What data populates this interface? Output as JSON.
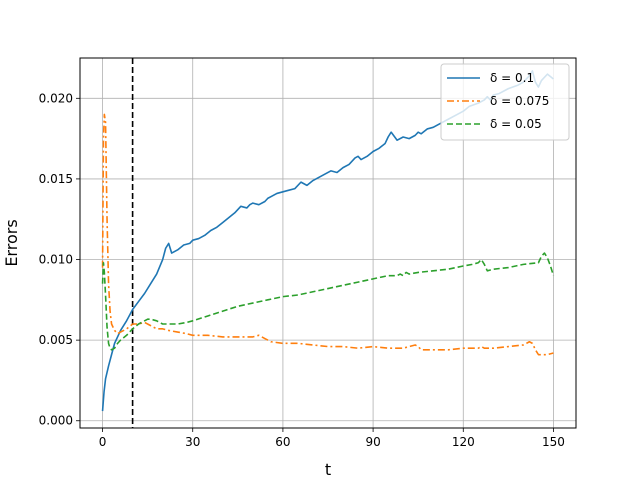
{
  "chart_data": {
    "type": "line",
    "title": "",
    "xlabel": "t",
    "ylabel": "Errors",
    "xlim": [
      -7.5,
      157.5
    ],
    "ylim": [
      -0.00045,
      0.0225
    ],
    "xticks": [
      0,
      30,
      60,
      90,
      120,
      150
    ],
    "xtick_labels": [
      "0",
      "30",
      "60",
      "90",
      "120",
      "150"
    ],
    "yticks": [
      0.0,
      0.005,
      0.01,
      0.015,
      0.02
    ],
    "ytick_labels": [
      "0.000",
      "0.005",
      "0.010",
      "0.015",
      "0.020"
    ],
    "grid": true,
    "legend_position": "top-right",
    "vline_x": 10,
    "vline_color": "#000000",
    "series": [
      {
        "name": "δ = 0.1",
        "color": "#1f77b4",
        "dash": "solid",
        "x": [
          0,
          0.5,
          1,
          2,
          3,
          4,
          6,
          8,
          10,
          12,
          14,
          16,
          18,
          20,
          21,
          22,
          23,
          25,
          27,
          29,
          30,
          32,
          34,
          36,
          38,
          40,
          42,
          44,
          46,
          48,
          49,
          50,
          52,
          54,
          55,
          56,
          58,
          60,
          62,
          64,
          66,
          67,
          68,
          70,
          72,
          74,
          76,
          78,
          80,
          82,
          84,
          85,
          86,
          88,
          90,
          92,
          94,
          95,
          96,
          98,
          100,
          102,
          104,
          105,
          106,
          108,
          110,
          112,
          115,
          118,
          120,
          122,
          125,
          127,
          128,
          129,
          130,
          132,
          135,
          138,
          140,
          141,
          142,
          143,
          144,
          145,
          146,
          148,
          150
        ],
        "y": [
          0.0006,
          0.0018,
          0.0026,
          0.0034,
          0.0041,
          0.0048,
          0.0056,
          0.0062,
          0.0069,
          0.0074,
          0.0079,
          0.0085,
          0.0091,
          0.01,
          0.0107,
          0.011,
          0.0104,
          0.0106,
          0.0109,
          0.011,
          0.0112,
          0.0113,
          0.0115,
          0.0118,
          0.012,
          0.0123,
          0.0126,
          0.0129,
          0.0133,
          0.0132,
          0.0134,
          0.0135,
          0.0134,
          0.0136,
          0.0138,
          0.0139,
          0.0141,
          0.0142,
          0.0143,
          0.0144,
          0.0148,
          0.0147,
          0.0146,
          0.0149,
          0.0151,
          0.0153,
          0.0155,
          0.0154,
          0.0157,
          0.0159,
          0.0163,
          0.0164,
          0.0162,
          0.0164,
          0.0167,
          0.0169,
          0.0172,
          0.0176,
          0.0179,
          0.0174,
          0.0176,
          0.0175,
          0.0177,
          0.0179,
          0.0178,
          0.0181,
          0.0182,
          0.0184,
          0.0187,
          0.019,
          0.0192,
          0.0195,
          0.0197,
          0.0199,
          0.0201,
          0.0199,
          0.0202,
          0.0203,
          0.0206,
          0.0208,
          0.021,
          0.0212,
          0.0214,
          0.0217,
          0.021,
          0.0207,
          0.0211,
          0.0215,
          0.0212
        ]
      },
      {
        "name": "δ = 0.075",
        "color": "#ff7f0e",
        "dash": "dashdot",
        "x": [
          0,
          0.3,
          0.6,
          1,
          1.5,
          2,
          2.5,
          3,
          4,
          5,
          6,
          8,
          10,
          12,
          14,
          16,
          18,
          20,
          22,
          25,
          28,
          30,
          35,
          40,
          45,
          50,
          52,
          54,
          56,
          60,
          65,
          70,
          75,
          80,
          85,
          90,
          95,
          100,
          102,
          104,
          105,
          106,
          110,
          115,
          120,
          125,
          126,
          127,
          130,
          135,
          140,
          142,
          143,
          144,
          145,
          146,
          148,
          150
        ],
        "y": [
          0.0095,
          0.0175,
          0.019,
          0.0185,
          0.0125,
          0.0085,
          0.0068,
          0.006,
          0.0056,
          0.0054,
          0.0055,
          0.0057,
          0.006,
          0.006,
          0.0061,
          0.0059,
          0.0057,
          0.0057,
          0.0056,
          0.0055,
          0.0054,
          0.0053,
          0.0053,
          0.0052,
          0.0052,
          0.0052,
          0.0053,
          0.0051,
          0.0049,
          0.0048,
          0.0048,
          0.0047,
          0.0046,
          0.0046,
          0.0045,
          0.0046,
          0.0045,
          0.0045,
          0.0046,
          0.0047,
          0.0046,
          0.0044,
          0.0044,
          0.0044,
          0.0045,
          0.0045,
          0.0046,
          0.0045,
          0.0045,
          0.0046,
          0.0047,
          0.0049,
          0.0048,
          0.0044,
          0.0041,
          0.0041,
          0.0041,
          0.0042
        ]
      },
      {
        "name": "δ = 0.05",
        "color": "#2ca02c",
        "dash": "dashed",
        "x": [
          0,
          0.3,
          0.6,
          1,
          1.5,
          2,
          2.5,
          3,
          4,
          5,
          6,
          8,
          10,
          12,
          14,
          15,
          16,
          18,
          20,
          22,
          25,
          28,
          30,
          35,
          40,
          45,
          50,
          55,
          60,
          65,
          70,
          75,
          80,
          85,
          90,
          95,
          98,
          99,
          100,
          101,
          102,
          105,
          110,
          115,
          120,
          123,
          125,
          126,
          127,
          128,
          130,
          135,
          140,
          145,
          146,
          147,
          148,
          149,
          150
        ],
        "y": [
          0.0085,
          0.0098,
          0.0092,
          0.0078,
          0.0058,
          0.0048,
          0.0045,
          0.0044,
          0.0045,
          0.0048,
          0.005,
          0.0053,
          0.0057,
          0.006,
          0.0062,
          0.0063,
          0.0063,
          0.0062,
          0.006,
          0.006,
          0.006,
          0.0061,
          0.0062,
          0.0065,
          0.0068,
          0.0071,
          0.0073,
          0.0075,
          0.0077,
          0.0078,
          0.008,
          0.0082,
          0.0084,
          0.0086,
          0.0088,
          0.009,
          0.009,
          0.0091,
          0.009,
          0.0092,
          0.0091,
          0.0092,
          0.0093,
          0.0094,
          0.0096,
          0.0097,
          0.0098,
          0.01,
          0.0097,
          0.0093,
          0.0094,
          0.0095,
          0.0097,
          0.0098,
          0.0102,
          0.0104,
          0.0101,
          0.0096,
          0.009
        ]
      }
    ]
  }
}
